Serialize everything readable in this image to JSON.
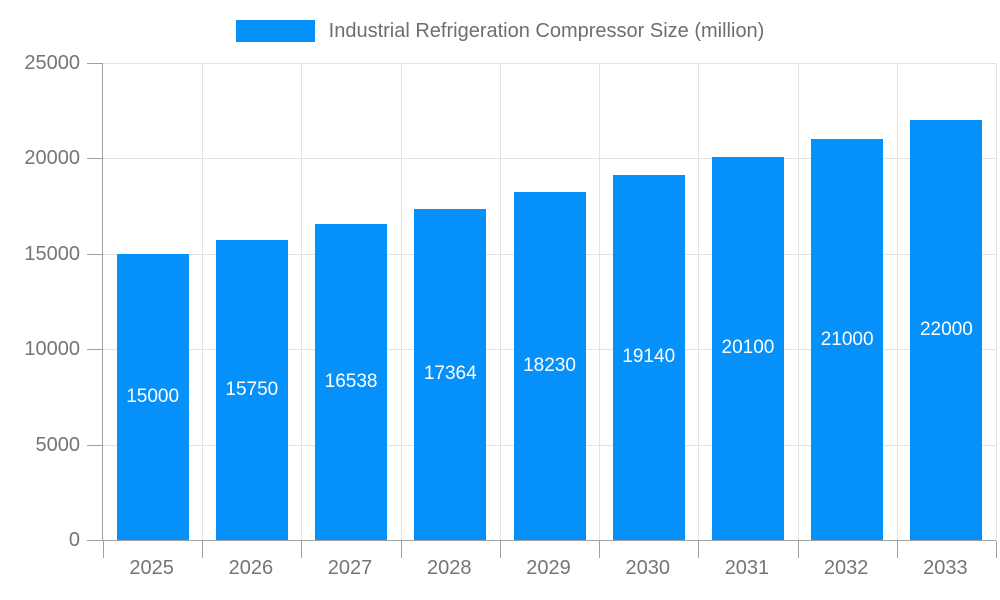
{
  "chart_data": {
    "type": "bar",
    "title": "Industrial Refrigeration Compressor Size (million)",
    "series_name": "Industrial Refrigeration Compressor Size (million)",
    "categories": [
      "2025",
      "2026",
      "2027",
      "2028",
      "2029",
      "2030",
      "2031",
      "2032",
      "2033"
    ],
    "values": [
      15000,
      15750,
      16538,
      17364,
      18230,
      19140,
      20100,
      21000,
      22000
    ],
    "xlabel": "",
    "ylabel": "",
    "ylim": [
      0,
      25000
    ],
    "yticks": [
      0,
      5000,
      10000,
      15000,
      20000,
      25000
    ],
    "grid": true,
    "legend_position": "top",
    "bar_labels_visible": true,
    "colors": {
      "bar": "#0590fa",
      "axis": "#a0a0a0",
      "grid": "#e3e3e3",
      "axis_text": "#757575",
      "legend_text": "#6e6e6e",
      "bar_label_text": "#ffffff"
    }
  }
}
